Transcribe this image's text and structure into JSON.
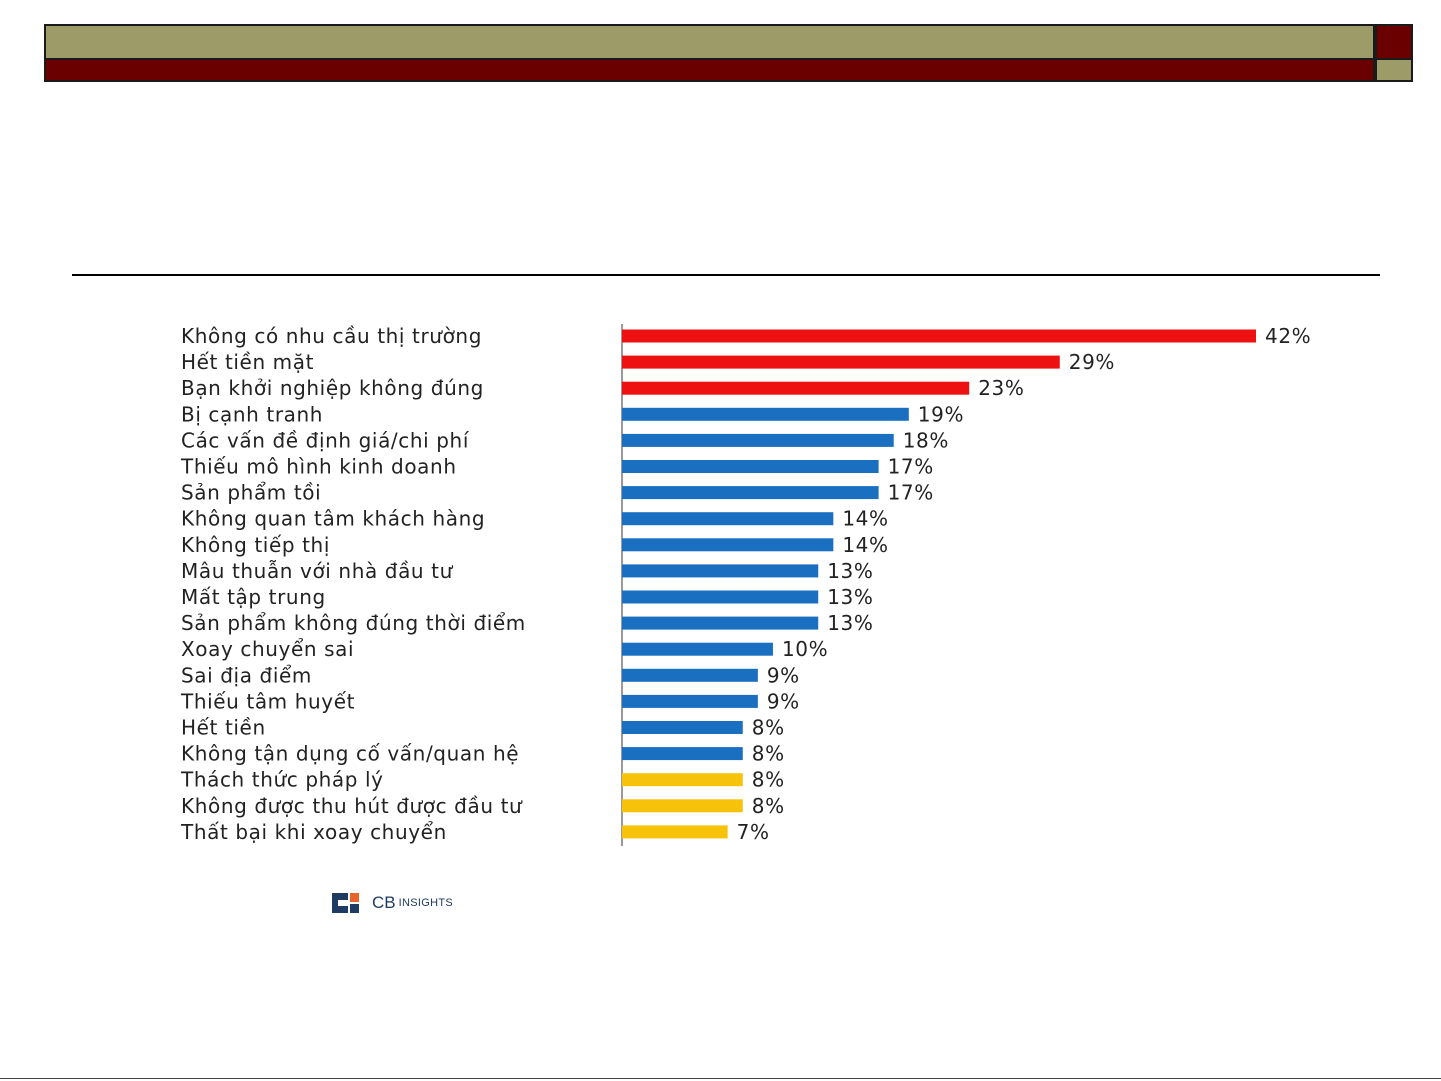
{
  "colors": {
    "header_olive": "#9d9b68",
    "header_maroon": "#6b0000",
    "bar_red": "#ee1111",
    "bar_blue": "#1a6fc0",
    "bar_yellow": "#f7c20a"
  },
  "logo": {
    "brand": "CB",
    "suffix": "INSIGHTS"
  },
  "chart_data": {
    "type": "bar",
    "orientation": "horizontal",
    "categories": [
      "Không có nhu cầu thị trường",
      "Hết tiền mặt",
      "Bạn khởi nghiệp không đúng",
      "Bị cạnh tranh",
      "Các vấn đề định giá/chi phí",
      "Thiếu mô hình kinh doanh",
      "Sản phẩm tồi",
      "Không quan tâm khách hàng",
      "Không tiếp thị",
      "Mâu thuẫn với nhà đầu tư",
      "Mất tập trung",
      "Sản phẩm không đúng thời điểm",
      "Xoay chuyển sai",
      "Sai địa điểm",
      "Thiếu tâm huyết",
      "Hết tiền",
      "Không tận dụng cố vấn/quan hệ",
      "Thách thức pháp lý",
      "Không được thu hút được đầu tư",
      "Thất bại khi xoay chuyển"
    ],
    "values": [
      42,
      29,
      23,
      19,
      18,
      17,
      17,
      14,
      14,
      13,
      13,
      13,
      10,
      9,
      9,
      8,
      8,
      8,
      8,
      7
    ],
    "value_labels": [
      "42%",
      "29%",
      "23%",
      "19%",
      "18%",
      "17%",
      "17%",
      "14%",
      "14%",
      "13%",
      "13%",
      "13%",
      "10%",
      "9%",
      "9%",
      "8%",
      "8%",
      "8%",
      "8%",
      "7%"
    ],
    "bar_colors": [
      "red",
      "red",
      "red",
      "blue",
      "blue",
      "blue",
      "blue",
      "blue",
      "blue",
      "blue",
      "blue",
      "blue",
      "blue",
      "blue",
      "blue",
      "blue",
      "blue",
      "yellow",
      "yellow",
      "yellow"
    ],
    "title": "",
    "xlabel": "",
    "ylabel": "",
    "xlim": [
      0,
      42
    ],
    "grid": false,
    "legend": "none"
  }
}
